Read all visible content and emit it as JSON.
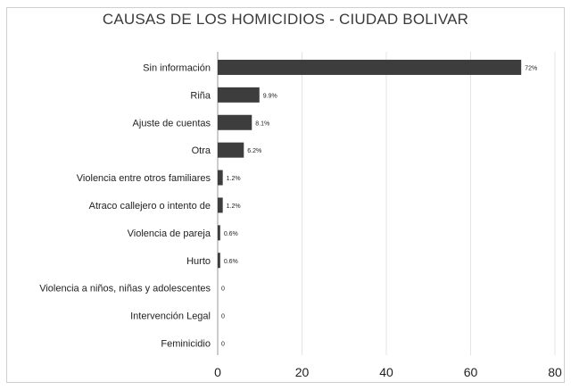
{
  "chart_data": {
    "type": "bar",
    "orientation": "horizontal",
    "title": "CAUSAS DE LOS HOMICIDIOS - CIUDAD BOLIVAR",
    "categories": [
      "Sin información",
      "Riña",
      "Ajuste de cuentas",
      "Otra",
      "Violencia entre otros familiares",
      "Atraco callejero o intento de",
      "Violencia de pareja",
      "Hurto",
      "Violencia a niños, niñas y adolescentes",
      "Intervención Legal",
      "Feminicidio"
    ],
    "values": [
      72,
      9.9,
      8.1,
      6.2,
      1.2,
      1.2,
      0.6,
      0.6,
      0,
      0,
      0
    ],
    "value_labels": [
      "72%",
      "9.9%",
      "8.1%",
      "6.2%",
      "1.2%",
      "1.2%",
      "0.6%",
      "0.6%",
      "0",
      "0",
      "0"
    ],
    "xlim": [
      0,
      80
    ],
    "xticks": [
      0,
      20,
      40,
      60,
      80
    ],
    "grid": true,
    "bar_color": "#3d3d3d",
    "grid_color": "#e4e4e4",
    "axis_color": "#9a9a9a"
  }
}
